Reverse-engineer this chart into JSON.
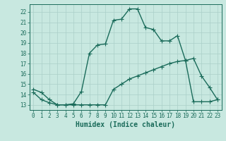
{
  "upper_x": [
    0,
    1,
    2,
    3,
    4,
    5,
    6,
    7,
    8,
    9,
    10,
    11,
    12,
    13,
    14,
    15,
    16,
    17,
    18,
    19,
    20,
    21,
    22,
    23
  ],
  "upper_y": [
    14.5,
    14.2,
    13.5,
    13.0,
    13.0,
    13.1,
    14.3,
    18.0,
    18.8,
    18.9,
    21.2,
    21.3,
    22.3,
    22.3,
    20.5,
    20.3,
    19.2,
    19.2,
    19.7,
    17.3,
    17.5,
    15.8,
    14.7,
    13.5
  ],
  "lower_x": [
    0,
    1,
    2,
    3,
    4,
    5,
    6,
    7,
    8,
    9,
    10,
    11,
    12,
    13,
    14,
    15,
    16,
    17,
    18,
    19,
    20,
    21,
    22,
    23
  ],
  "lower_y": [
    14.2,
    13.5,
    13.2,
    13.0,
    13.0,
    13.0,
    13.0,
    13.0,
    13.0,
    13.0,
    14.5,
    15.0,
    15.5,
    15.8,
    16.1,
    16.4,
    16.7,
    17.0,
    17.2,
    17.3,
    13.3,
    13.3,
    13.3,
    13.5
  ],
  "line_color": "#1a6b5a",
  "marker": "+",
  "background_color": "#c8e8e0",
  "grid_color": "#aacfc8",
  "xlabel": "Humidex (Indice chaleur)",
  "ylim": [
    12.5,
    22.75
  ],
  "xlim": [
    -0.5,
    23.5
  ],
  "yticks": [
    13,
    14,
    15,
    16,
    17,
    18,
    19,
    20,
    21,
    22
  ],
  "xticks": [
    0,
    1,
    2,
    3,
    4,
    5,
    6,
    7,
    8,
    9,
    10,
    11,
    12,
    13,
    14,
    15,
    16,
    17,
    18,
    19,
    20,
    21,
    22,
    23
  ],
  "tick_fontsize": 5.5,
  "xlabel_fontsize": 7.0,
  "line_width": 1.0,
  "marker_size": 4
}
